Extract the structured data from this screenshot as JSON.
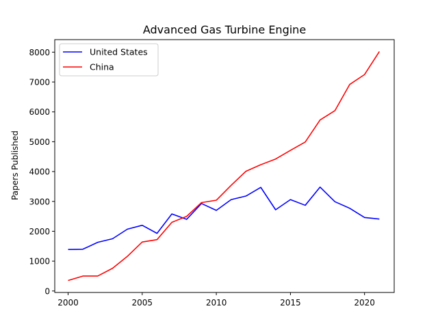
{
  "chart_data": {
    "type": "line",
    "title": "Advanced Gas Turbine Engine",
    "xlabel": "",
    "ylabel": "Papers Published",
    "xlim": [
      1999.1,
      2022.0
    ],
    "ylim": [
      -50,
      8420
    ],
    "xticks": [
      2000,
      2005,
      2010,
      2015,
      2020
    ],
    "yticks": [
      0,
      1000,
      2000,
      3000,
      4000,
      5000,
      6000,
      7000,
      8000
    ],
    "grid": false,
    "legend_position": "top-left",
    "x": [
      2000,
      2001,
      2002,
      2003,
      2004,
      2005,
      2006,
      2007,
      2008,
      2009,
      2010,
      2011,
      2012,
      2013,
      2014,
      2015,
      2016,
      2017,
      2018,
      2019,
      2020,
      2021
    ],
    "series": [
      {
        "name": "United States",
        "color": "#0000ff",
        "values": [
          1390,
          1400,
          1630,
          1750,
          2070,
          2200,
          1930,
          2580,
          2400,
          2930,
          2700,
          3060,
          3180,
          3470,
          2720,
          3060,
          2870,
          3480,
          2990,
          2770,
          2460,
          2410
        ]
      },
      {
        "name": "China",
        "color": "#ff0000",
        "values": [
          350,
          500,
          500,
          760,
          1160,
          1640,
          1720,
          2300,
          2500,
          2960,
          3040,
          3540,
          4010,
          4230,
          4420,
          4710,
          4990,
          5730,
          6040,
          6920,
          7250,
          8020
        ]
      }
    ]
  }
}
